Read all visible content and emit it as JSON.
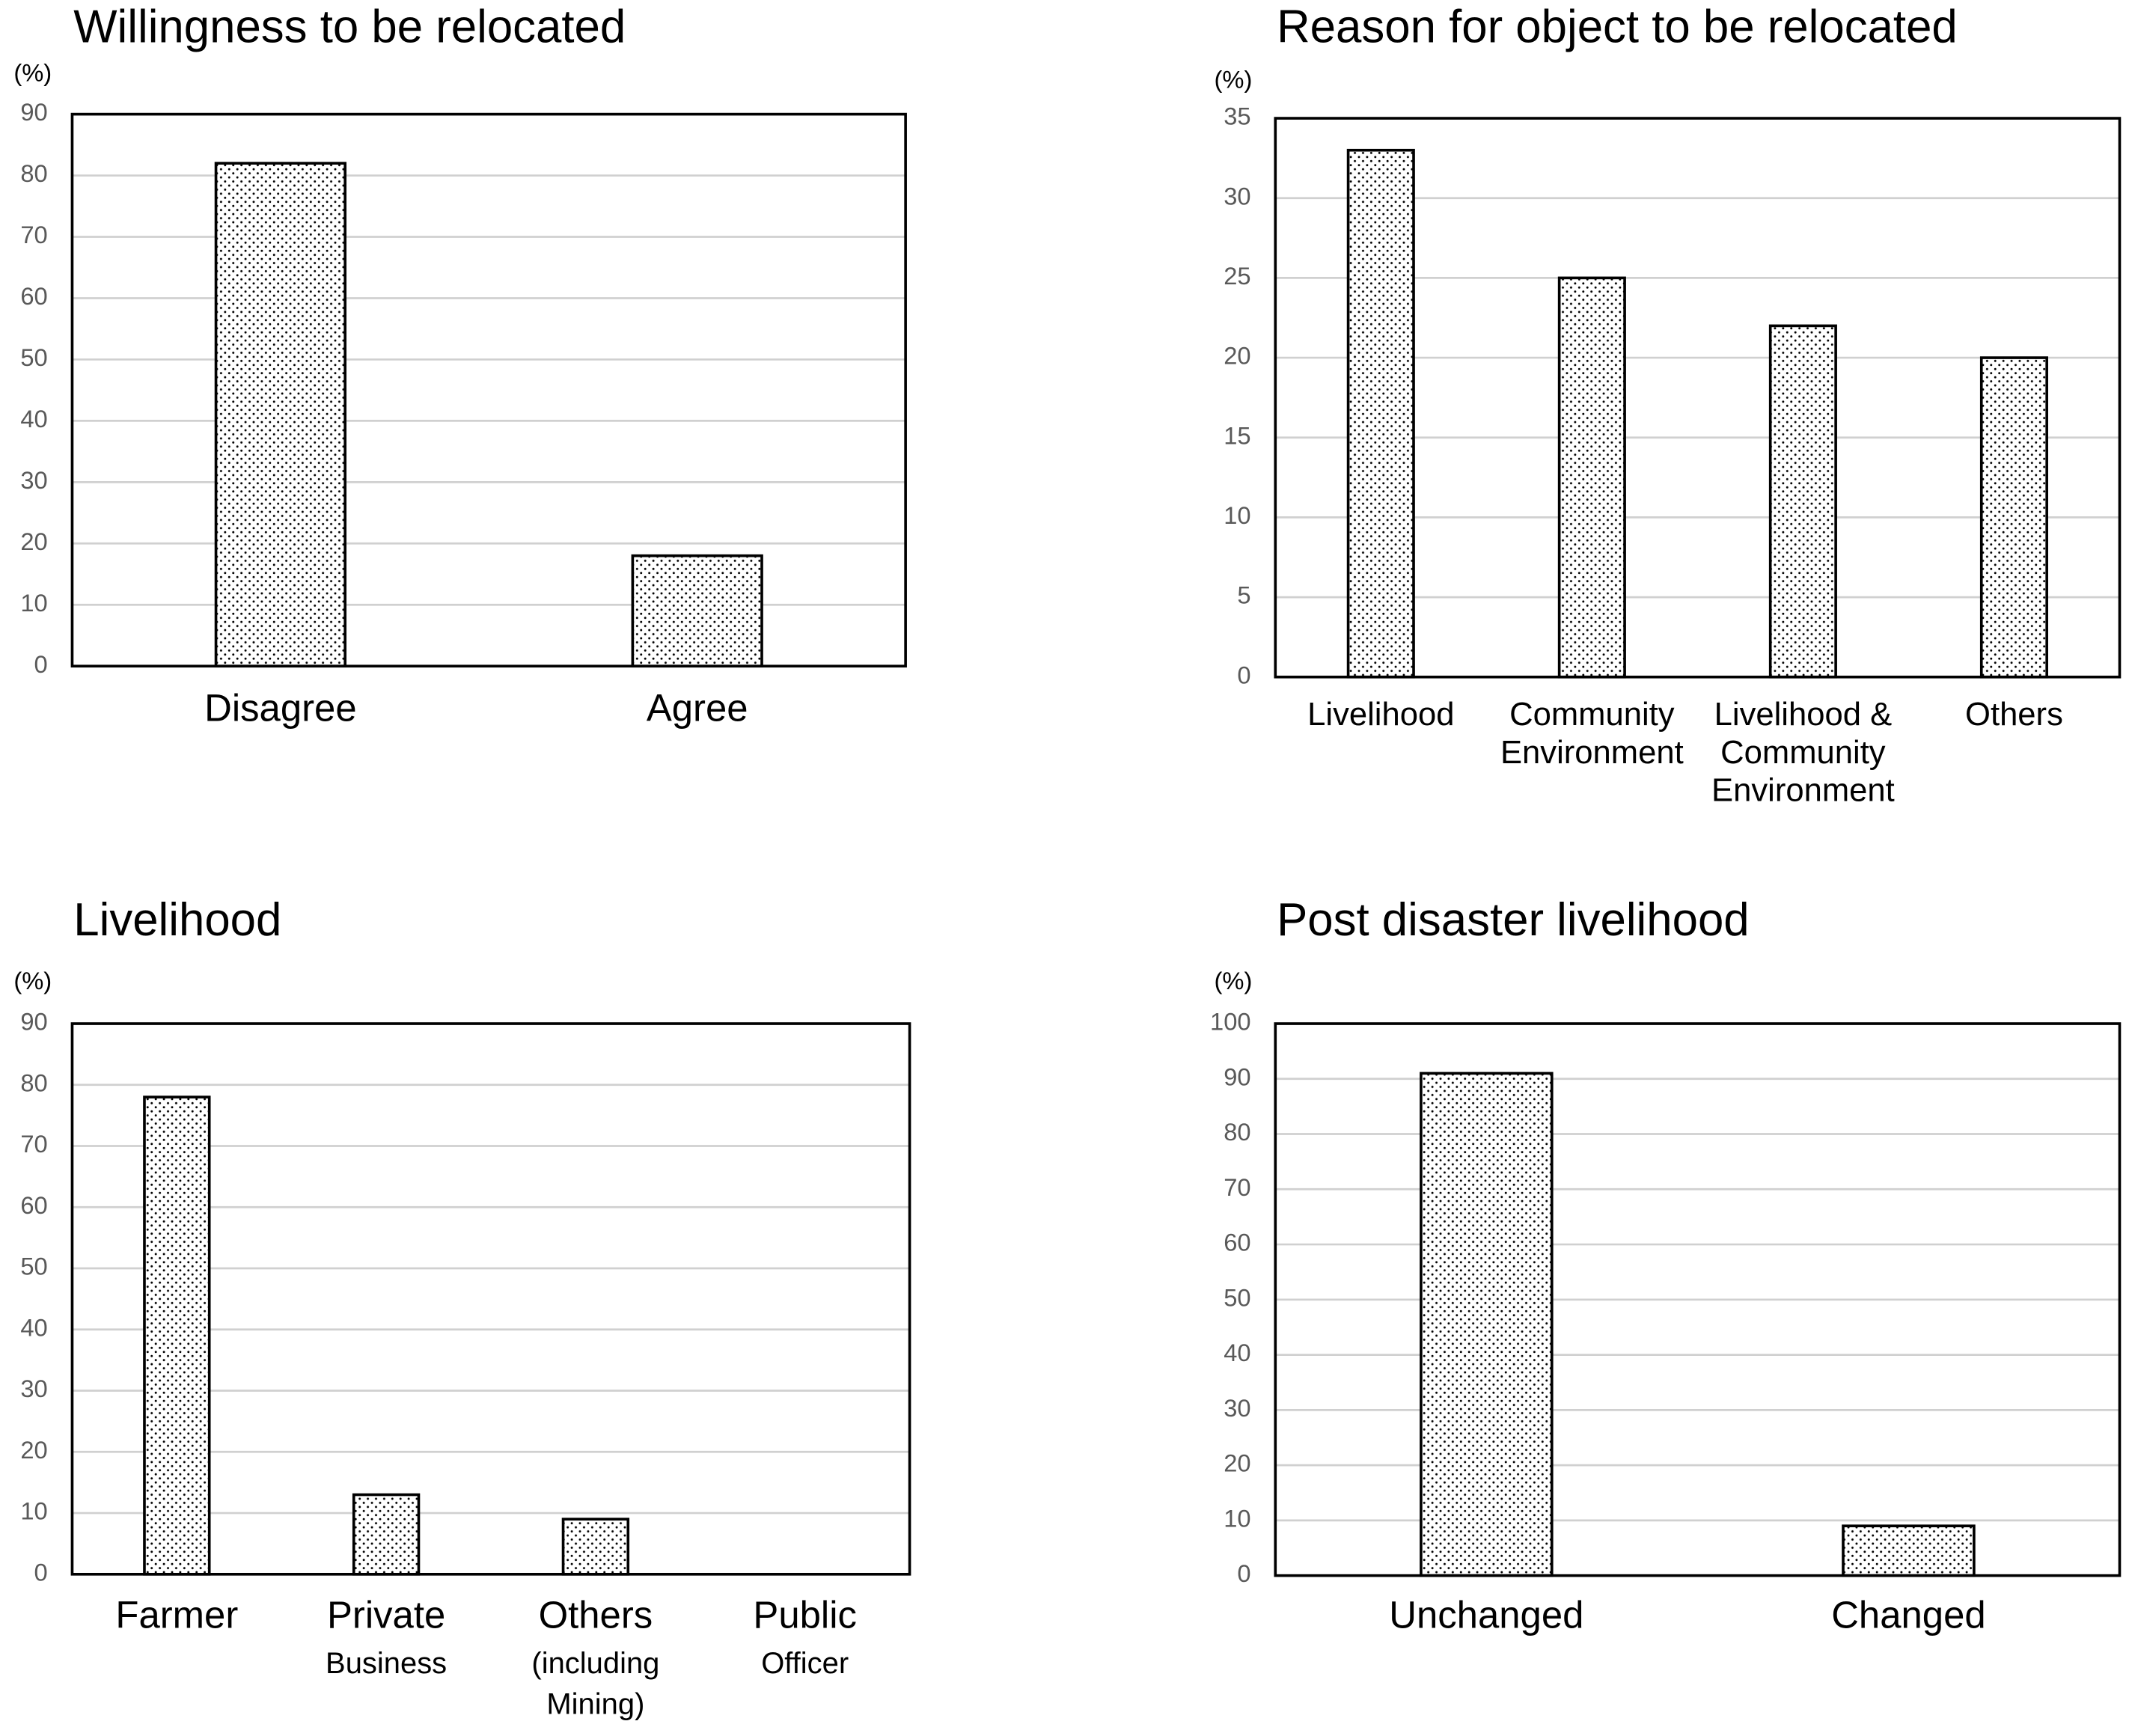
{
  "chart_data": [
    {
      "type": "bar",
      "title": "Willingness to be relocated",
      "y_label": "(%)",
      "categories": [
        [
          "Disagree"
        ],
        [
          "Agree"
        ]
      ],
      "values": [
        82,
        18
      ],
      "color": "#000000",
      "ylim": [
        0,
        90
      ],
      "yticks": [
        0,
        10,
        20,
        30,
        40,
        50,
        60,
        70,
        80,
        90
      ],
      "grid": true
    },
    {
      "type": "bar",
      "title": "Reason for object to be relocated",
      "y_label": "(%)",
      "categories": [
        [
          "Livelihood"
        ],
        [
          "Community",
          "Environment"
        ],
        [
          "Livelihood &",
          "Community",
          "Environment"
        ],
        [
          "Others"
        ]
      ],
      "values": [
        33,
        25,
        22,
        20
      ],
      "color": "#000000",
      "ylim": [
        0,
        35
      ],
      "yticks": [
        0,
        5,
        10,
        15,
        20,
        25,
        30,
        35
      ],
      "grid": true
    },
    {
      "type": "bar",
      "title": "Livelihood",
      "y_label": "(%)",
      "categories": [
        [
          "Farmer"
        ],
        [
          "Private",
          "Business"
        ],
        [
          "Others",
          "(including",
          "Mining)"
        ],
        [
          "Public",
          "Officer"
        ]
      ],
      "values": [
        78,
        13,
        9,
        0
      ],
      "color": "#000000",
      "ylim": [
        0,
        90
      ],
      "yticks": [
        0,
        10,
        20,
        30,
        40,
        50,
        60,
        70,
        80,
        90
      ],
      "grid": true
    },
    {
      "type": "bar",
      "title": "Post disaster livelihood",
      "y_label": "(%)",
      "categories": [
        [
          "Unchanged"
        ],
        [
          "Changed"
        ]
      ],
      "values": [
        91,
        9
      ],
      "color": "#000000",
      "ylim": [
        0,
        100
      ],
      "yticks": [
        0,
        10,
        20,
        30,
        40,
        50,
        60,
        70,
        80,
        90,
        100
      ],
      "grid": true
    }
  ]
}
